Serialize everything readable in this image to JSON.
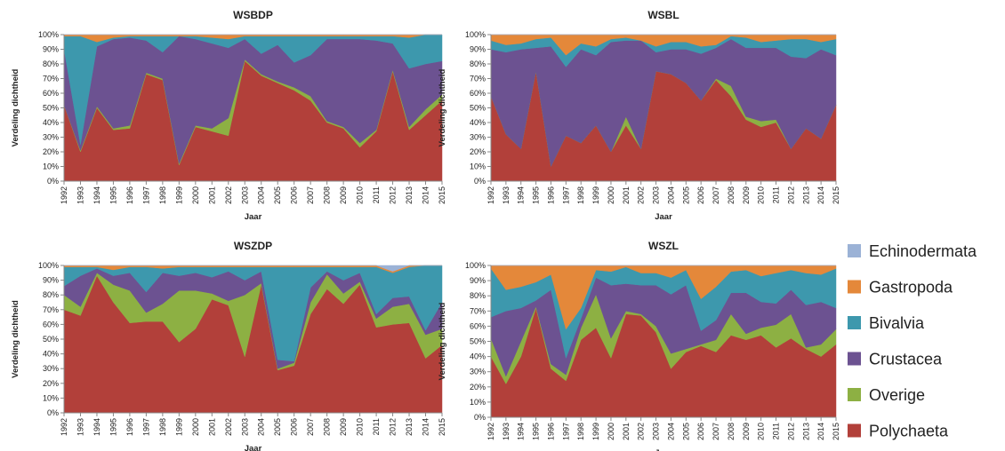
{
  "chart_data": [
    {
      "type": "area",
      "stacked": true,
      "title": "WSBDP",
      "xlabel": "Jaar",
      "ylabel": "Verdeling dichtheid",
      "categories": [
        "1992",
        "1993",
        "1994",
        "1995",
        "1996",
        "1997",
        "1998",
        "1999",
        "2000",
        "2001",
        "2002",
        "2003",
        "2004",
        "2005",
        "2006",
        "2007",
        "2008",
        "2009",
        "2010",
        "2011",
        "2012",
        "2013",
        "2014",
        "2015"
      ],
      "series": [
        {
          "name": "Polychaeta",
          "color": "#b2403a",
          "values": [
            52,
            20,
            50,
            35,
            36,
            73,
            69,
            11,
            37,
            34,
            31,
            82,
            72,
            67,
            62,
            55,
            40,
            36,
            23,
            34,
            75,
            35,
            45,
            55
          ]
        },
        {
          "name": "Overige",
          "color": "#8db043",
          "values": [
            0,
            1,
            1,
            1,
            2,
            1,
            1,
            1,
            1,
            2,
            12,
            1,
            1,
            1,
            2,
            3,
            1,
            1,
            3,
            1,
            1,
            2,
            4,
            4
          ]
        },
        {
          "name": "Crustacea",
          "color": "#6c5291",
          "values": [
            38,
            4,
            41,
            61,
            60,
            22,
            18,
            87,
            59,
            58,
            48,
            14,
            14,
            25,
            17,
            28,
            56,
            60,
            71,
            61,
            18,
            40,
            31,
            23
          ]
        },
        {
          "name": "Bivalvia",
          "color": "#3d98ad",
          "values": [
            9,
            74,
            3,
            1,
            1,
            3,
            11,
            0,
            2,
            4,
            6,
            2,
            12,
            6,
            18,
            13,
            2,
            2,
            2,
            3,
            5,
            21,
            20,
            18
          ]
        },
        {
          "name": "Gastropoda",
          "color": "#e4883a",
          "values": [
            1,
            1,
            5,
            2,
            1,
            1,
            1,
            1,
            1,
            2,
            3,
            1,
            1,
            1,
            1,
            1,
            1,
            1,
            1,
            1,
            1,
            2,
            0,
            0
          ]
        },
        {
          "name": "Echinodermata",
          "color": "#9bb2d6",
          "values": [
            0,
            0,
            0,
            0,
            0,
            0,
            0,
            0,
            0,
            0,
            0,
            0,
            0,
            0,
            0,
            0,
            0,
            0,
            0,
            0,
            0,
            0,
            0,
            0
          ]
        }
      ],
      "ylim": [
        0,
        100
      ],
      "yticks": [
        {
          "value": 0,
          "label": "0%"
        },
        {
          "value": 10,
          "label": "10%"
        },
        {
          "value": 20,
          "label": "20%"
        },
        {
          "value": 30,
          "label": "30%"
        },
        {
          "value": 40,
          "label": "40%"
        },
        {
          "value": 50,
          "label": "50%"
        },
        {
          "value": 60,
          "label": "60%"
        },
        {
          "value": 70,
          "label": "70%"
        },
        {
          "value": 80,
          "label": "80%"
        },
        {
          "value": 90,
          "label": "90%"
        },
        {
          "value": 100,
          "label": "100%"
        }
      ],
      "grid": false,
      "legend": "right"
    },
    {
      "type": "area",
      "stacked": true,
      "title": "WSBL",
      "xlabel": "Jaar",
      "ylabel": "Verdeling dichtheid",
      "categories": [
        "1992",
        "1993",
        "1994",
        "1995",
        "1996",
        "1997",
        "1998",
        "1999",
        "2000",
        "2001",
        "2002",
        "2003",
        "2004",
        "2005",
        "2006",
        "2007",
        "2008",
        "2009",
        "2010",
        "2011",
        "2012",
        "2013",
        "2014",
        "2015"
      ],
      "series": [
        {
          "name": "Polychaeta",
          "color": "#b2403a",
          "values": [
            58,
            32,
            22,
            75,
            10,
            31,
            26,
            38,
            20,
            38,
            22,
            75,
            73,
            67,
            55,
            69,
            58,
            42,
            37,
            40,
            22,
            36,
            29,
            52
          ]
        },
        {
          "name": "Overige",
          "color": "#8db043",
          "values": [
            0,
            0,
            0,
            0,
            0,
            0,
            0,
            0,
            0,
            6,
            0,
            0,
            0,
            0,
            0,
            1,
            7,
            2,
            4,
            2,
            0,
            0,
            0,
            0
          ]
        },
        {
          "name": "Crustacea",
          "color": "#6c5291",
          "values": [
            32,
            56,
            68,
            16,
            82,
            47,
            64,
            48,
            75,
            52,
            74,
            13,
            17,
            23,
            32,
            21,
            32,
            47,
            50,
            49,
            63,
            48,
            61,
            34
          ]
        },
        {
          "name": "Bivalvia",
          "color": "#3d98ad",
          "values": [
            6,
            5,
            4,
            6,
            6,
            8,
            4,
            6,
            2,
            2,
            0,
            4,
            5,
            5,
            5,
            2,
            2,
            7,
            4,
            5,
            12,
            13,
            5,
            11
          ]
        },
        {
          "name": "Gastropoda",
          "color": "#e4883a",
          "values": [
            4,
            7,
            6,
            3,
            2,
            14,
            6,
            8,
            3,
            2,
            4,
            8,
            5,
            5,
            8,
            7,
            1,
            2,
            5,
            4,
            3,
            3,
            5,
            3
          ]
        },
        {
          "name": "Echinodermata",
          "color": "#9bb2d6",
          "values": [
            0,
            0,
            0,
            0,
            0,
            0,
            0,
            0,
            0,
            0,
            0,
            0,
            0,
            0,
            0,
            0,
            0,
            0,
            0,
            0,
            0,
            0,
            0,
            0
          ]
        }
      ],
      "ylim": [
        0,
        100
      ],
      "yticks": [
        {
          "value": 0,
          "label": "0%"
        },
        {
          "value": 10,
          "label": "10%"
        },
        {
          "value": 20,
          "label": "20%"
        },
        {
          "value": 30,
          "label": "30%"
        },
        {
          "value": 40,
          "label": "40%"
        },
        {
          "value": 50,
          "label": "50%"
        },
        {
          "value": 60,
          "label": "60%"
        },
        {
          "value": 70,
          "label": "70%"
        },
        {
          "value": 80,
          "label": "80%"
        },
        {
          "value": 90,
          "label": "90%"
        },
        {
          "value": 100,
          "label": "100%"
        }
      ],
      "grid": false
    },
    {
      "type": "area",
      "stacked": true,
      "title": "WSZDP",
      "xlabel": "Jaar",
      "ylabel": "Verdeling dichtheid",
      "categories": [
        "1992",
        "1993",
        "1994",
        "1995",
        "1996",
        "1997",
        "1998",
        "1999",
        "2000",
        "2001",
        "2002",
        "2003",
        "2004",
        "2005",
        "2006",
        "2007",
        "2008",
        "2009",
        "2010",
        "2011",
        "2012",
        "2013",
        "2014",
        "2015"
      ],
      "series": [
        {
          "name": "Polychaeta",
          "color": "#b2403a",
          "values": [
            70,
            66,
            93,
            75,
            61,
            62,
            62,
            48,
            57,
            77,
            73,
            38,
            87,
            29,
            32,
            67,
            84,
            74,
            87,
            58,
            60,
            61,
            37,
            46
          ]
        },
        {
          "name": "Overige",
          "color": "#8db043",
          "values": [
            10,
            6,
            2,
            12,
            22,
            6,
            12,
            35,
            26,
            4,
            3,
            42,
            1,
            1,
            2,
            8,
            10,
            7,
            2,
            6,
            12,
            13,
            16,
            11
          ]
        },
        {
          "name": "Crustacea",
          "color": "#6c5291",
          "values": [
            6,
            21,
            3,
            6,
            12,
            14,
            21,
            10,
            12,
            11,
            20,
            10,
            8,
            6,
            1,
            10,
            2,
            9,
            6,
            3,
            6,
            5,
            3,
            18
          ]
        },
        {
          "name": "Bivalvia",
          "color": "#3d98ad",
          "values": [
            13,
            6,
            1,
            4,
            4,
            17,
            3,
            6,
            4,
            7,
            3,
            9,
            3,
            63,
            64,
            14,
            3,
            9,
            4,
            32,
            17,
            20,
            44,
            25
          ]
        },
        {
          "name": "Gastropoda",
          "color": "#e4883a",
          "values": [
            1,
            1,
            1,
            3,
            1,
            1,
            2,
            1,
            1,
            1,
            1,
            1,
            1,
            1,
            1,
            1,
            1,
            1,
            1,
            1,
            1,
            1,
            0,
            0
          ]
        },
        {
          "name": "Echinodermata",
          "color": "#9bb2d6",
          "values": [
            0,
            0,
            0,
            0,
            0,
            0,
            0,
            0,
            0,
            0,
            0,
            0,
            0,
            0,
            0,
            0,
            0,
            0,
            0,
            0,
            4,
            0,
            0,
            0
          ]
        }
      ],
      "ylim": [
        0,
        100
      ],
      "yticks": [
        {
          "value": 0,
          "label": "0%"
        },
        {
          "value": 10,
          "label": "10%"
        },
        {
          "value": 20,
          "label": "20%"
        },
        {
          "value": 30,
          "label": "30%"
        },
        {
          "value": 40,
          "label": "40%"
        },
        {
          "value": 50,
          "label": "50%"
        },
        {
          "value": 60,
          "label": "60%"
        },
        {
          "value": 70,
          "label": "70%"
        },
        {
          "value": 80,
          "label": "80%"
        },
        {
          "value": 90,
          "label": "90%"
        },
        {
          "value": 100,
          "label": "100%"
        }
      ],
      "grid": false
    },
    {
      "type": "area",
      "stacked": true,
      "title": "WSZL",
      "xlabel": "Jaar",
      "ylabel": "Verdeling dichtheid",
      "categories": [
        "1992",
        "1993",
        "1994",
        "1995",
        "1996",
        "1997",
        "1998",
        "1999",
        "2000",
        "2001",
        "2002",
        "2003",
        "2004",
        "2005",
        "2006",
        "2007",
        "2008",
        "2009",
        "2010",
        "2011",
        "2012",
        "2013",
        "2014",
        "2015"
      ],
      "series": [
        {
          "name": "Polychaeta",
          "color": "#b2403a",
          "values": [
            40,
            22,
            40,
            72,
            32,
            24,
            51,
            59,
            39,
            68,
            67,
            56,
            32,
            43,
            47,
            43,
            54,
            51,
            54,
            46,
            52,
            45,
            40,
            48
          ]
        },
        {
          "name": "Overige",
          "color": "#8db043",
          "values": [
            12,
            5,
            10,
            1,
            3,
            4,
            8,
            22,
            13,
            2,
            1,
            4,
            10,
            2,
            1,
            8,
            14,
            4,
            5,
            15,
            16,
            1,
            8,
            10
          ]
        },
        {
          "name": "Crustacea",
          "color": "#6c5291",
          "values": [
            14,
            43,
            22,
            4,
            49,
            11,
            6,
            11,
            35,
            18,
            19,
            27,
            39,
            42,
            9,
            13,
            14,
            27,
            17,
            14,
            16,
            28,
            28,
            14
          ]
        },
        {
          "name": "Bivalvia",
          "color": "#3d98ad",
          "values": [
            32,
            14,
            14,
            12,
            10,
            19,
            7,
            5,
            9,
            11,
            8,
            8,
            11,
            10,
            21,
            22,
            14,
            15,
            17,
            20,
            13,
            21,
            18,
            26
          ]
        },
        {
          "name": "Gastropoda",
          "color": "#e4883a",
          "values": [
            2,
            16,
            14,
            11,
            6,
            42,
            28,
            3,
            4,
            1,
            5,
            5,
            8,
            3,
            22,
            14,
            4,
            3,
            7,
            5,
            3,
            5,
            6,
            2
          ]
        },
        {
          "name": "Echinodermata",
          "color": "#9bb2d6",
          "values": [
            0,
            0,
            0,
            0,
            0,
            0,
            0,
            0,
            0,
            0,
            0,
            0,
            0,
            0,
            0,
            0,
            0,
            0,
            0,
            0,
            0,
            0,
            0,
            0
          ]
        }
      ],
      "ylim": [
        0,
        100
      ],
      "yticks": [
        {
          "value": 0,
          "label": "0%"
        },
        {
          "value": 10,
          "label": "10%"
        },
        {
          "value": 20,
          "label": "20%"
        },
        {
          "value": 30,
          "label": "30%"
        },
        {
          "value": 40,
          "label": "40%"
        },
        {
          "value": 50,
          "label": "50%"
        },
        {
          "value": 60,
          "label": "60%"
        },
        {
          "value": 70,
          "label": "70%"
        },
        {
          "value": 80,
          "label": "80%"
        },
        {
          "value": 90,
          "label": "90%"
        },
        {
          "value": 100,
          "label": "100%"
        }
      ],
      "grid": false
    }
  ]
}
